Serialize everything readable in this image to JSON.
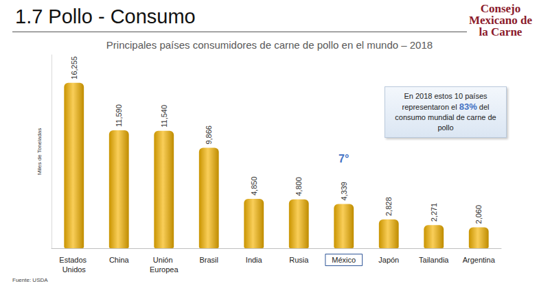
{
  "header": {
    "title": "1.7 Pollo - Consumo",
    "logo": "Consejo Mexicano de la Carne"
  },
  "chart_data": {
    "type": "bar",
    "title": "Principales países consumidores de carne de pollo en el mundo – 2018",
    "ylabel": "Miles de Toneladas",
    "categories": [
      "Estados Unidos",
      "China",
      "Unión Europea",
      "Brasil",
      "India",
      "Rusia",
      "México",
      "Japón",
      "Tailandia",
      "Argentina"
    ],
    "values": [
      16255,
      11590,
      11540,
      9866,
      4850,
      4800,
      4339,
      2828,
      2271,
      2060
    ],
    "value_labels": [
      "16,255",
      "11,590",
      "11,540",
      "9,866",
      "4,850",
      "4,800",
      "4,339",
      "2,828",
      "2,271",
      "2,060"
    ],
    "color": "#f5b400",
    "ylim": [
      0,
      19000
    ],
    "tick_labels": "x",
    "data_labels": true,
    "grid": false,
    "annotations": [
      {
        "text": "7°",
        "category": "México"
      }
    ],
    "callout": "En 2018 estos 10 países representaron el 83% del consumo mundial de carne de pollo",
    "source": "Fuente: USDA"
  }
}
